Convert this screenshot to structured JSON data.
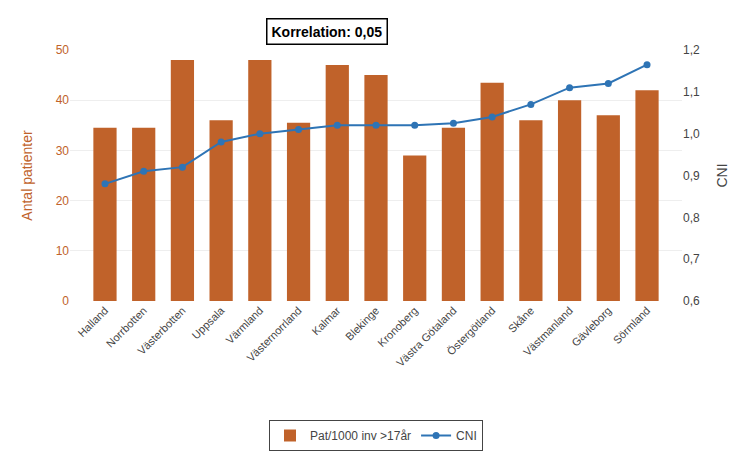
{
  "chart_data": {
    "type": "bar",
    "ylabel": "Antal patienter",
    "y2label": "CNI",
    "annotation": "Korrelation: 0,05",
    "categories": [
      "Halland",
      "Norrbotten",
      "Västerbotten",
      "Uppsala",
      "Värmland",
      "Västernorrland",
      "Kalmar",
      "Blekinge",
      "Kronoberg",
      "Västra Götaland",
      "Östergötland",
      "Skåne",
      "Västmanland",
      "Gävleborg",
      "Sörmland"
    ],
    "series": [
      {
        "name": "Pat/1000 inv >17år",
        "type": "bar",
        "color": "#C0622A",
        "values": [
          34.5,
          34.5,
          48,
          36,
          48,
          35.5,
          47,
          45,
          29,
          34.5,
          43.5,
          36,
          40,
          37,
          42
        ]
      },
      {
        "name": "CNI",
        "type": "line",
        "axis": "y2",
        "color": "#2E74B5",
        "marker": "circle",
        "values": [
          0.88,
          0.91,
          0.92,
          0.98,
          1.0,
          1.01,
          1.02,
          1.02,
          1.02,
          1.025,
          1.04,
          1.07,
          1.11,
          1.12,
          1.165
        ]
      }
    ],
    "ylim": [
      0,
      50
    ],
    "yticks": [
      0,
      10,
      20,
      30,
      40,
      50
    ],
    "y2lim": [
      0.6,
      1.2
    ],
    "y2ticks": [
      {
        "value": 0.6,
        "label": "0,6"
      },
      {
        "value": 0.7,
        "label": "0,7"
      },
      {
        "value": 0.8,
        "label": "0,8"
      },
      {
        "value": 0.9,
        "label": "0,9"
      },
      {
        "value": 1.0,
        "label": "1,0"
      },
      {
        "value": 1.1,
        "label": "1,1"
      },
      {
        "value": 1.2,
        "label": "1,2"
      }
    ],
    "grid": true,
    "legend": "bottom"
  }
}
